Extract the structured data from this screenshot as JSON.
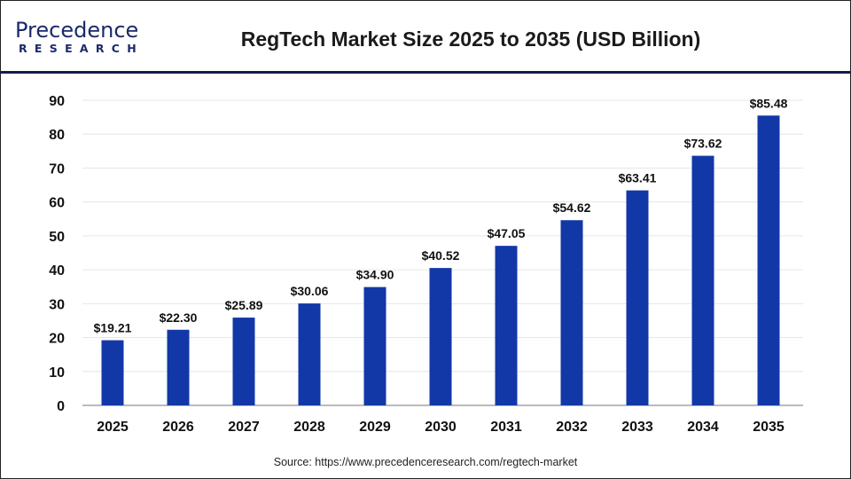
{
  "logo": {
    "line1": "Precedence",
    "line2": "RESEARCH"
  },
  "source": "Source: https://www.precedenceresearch.com/regtech-market",
  "colors": {
    "bar": "#1238a8",
    "header_rule": "#141c4a",
    "grid": "#e6e6e6"
  },
  "chart_data": {
    "type": "bar",
    "title": "RegTech Market Size 2025 to 2035 (USD Billion)",
    "categories": [
      "2025",
      "2026",
      "2027",
      "2028",
      "2029",
      "2030",
      "2031",
      "2032",
      "2033",
      "2034",
      "2035"
    ],
    "values": [
      19.21,
      22.3,
      25.89,
      30.06,
      34.9,
      40.52,
      47.05,
      54.62,
      63.41,
      73.62,
      85.48
    ],
    "data_labels": [
      "$19.21",
      "$22.30",
      "$25.89",
      "$30.06",
      "$34.90",
      "$40.52",
      "$47.05",
      "$54.62",
      "$63.41",
      "$73.62",
      "$85.48"
    ],
    "yticks": [
      0,
      10,
      20,
      30,
      40,
      50,
      60,
      70,
      80,
      90
    ],
    "ylim": [
      0,
      90
    ],
    "grid": true,
    "xlabel": "",
    "ylabel": ""
  }
}
